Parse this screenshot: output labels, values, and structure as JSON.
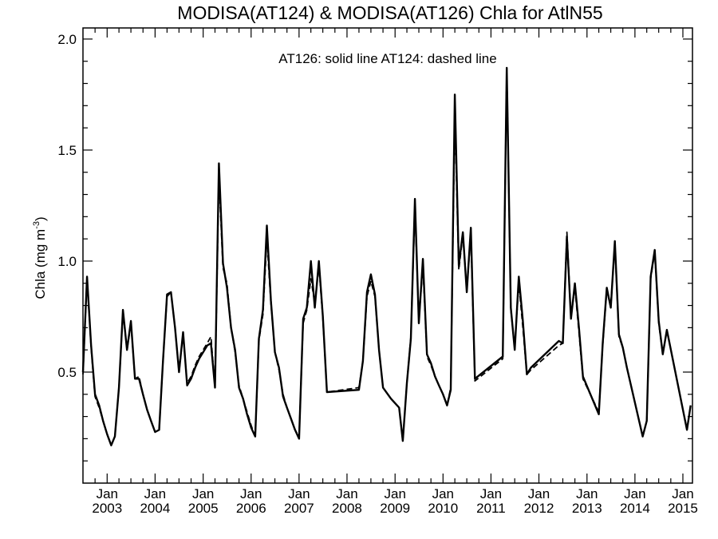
{
  "chart_data": {
    "type": "line",
    "title": "MODISA(AT124) & MODISA(AT126)  Chla for AtlN55",
    "annotation": "AT126: solid line   AT124: dashed line",
    "ylabel_main": "Chla (mg m",
    "ylabel_exp": "-3",
    "ylabel_close": ")",
    "xlabel": "",
    "xlim": [
      "2002-07-01",
      "2015-03-15"
    ],
    "ylim": [
      0.0,
      2.05
    ],
    "y_ticks": [
      {
        "value": 0.5,
        "label": "0.5"
      },
      {
        "value": 1.0,
        "label": "1.0"
      },
      {
        "value": 1.5,
        "label": "1.5"
      },
      {
        "value": 2.0,
        "label": "2.0"
      }
    ],
    "x_ticks": [
      {
        "date": "2003-01-01",
        "month": "Jan",
        "year": "2003"
      },
      {
        "date": "2004-01-01",
        "month": "Jan",
        "year": "2004"
      },
      {
        "date": "2005-01-01",
        "month": "Jan",
        "year": "2005"
      },
      {
        "date": "2006-01-01",
        "month": "Jan",
        "year": "2006"
      },
      {
        "date": "2007-01-01",
        "month": "Jan",
        "year": "2007"
      },
      {
        "date": "2008-01-01",
        "month": "Jan",
        "year": "2008"
      },
      {
        "date": "2009-01-01",
        "month": "Jan",
        "year": "2009"
      },
      {
        "date": "2010-01-01",
        "month": "Jan",
        "year": "2010"
      },
      {
        "date": "2011-01-01",
        "month": "Jan",
        "year": "2011"
      },
      {
        "date": "2012-01-01",
        "month": "Jan",
        "year": "2012"
      },
      {
        "date": "2013-01-01",
        "month": "Jan",
        "year": "2013"
      },
      {
        "date": "2014-01-01",
        "month": "Jan",
        "year": "2014"
      },
      {
        "date": "2015-01-01",
        "month": "Jan",
        "year": "2015"
      }
    ],
    "series": [
      {
        "style": "solid",
        "points": [
          [
            "2002-07-01",
            0.5
          ],
          [
            "2002-08-01",
            0.93
          ],
          [
            "2002-09-01",
            0.62
          ],
          [
            "2002-10-01",
            0.4
          ],
          [
            "2002-11-01",
            0.35
          ],
          [
            "2002-12-01",
            0.28
          ],
          [
            "2003-01-01",
            0.22
          ],
          [
            "2003-02-01",
            0.17
          ],
          [
            "2003-03-01",
            0.21
          ],
          [
            "2003-04-01",
            0.43
          ],
          [
            "2003-05-01",
            0.78
          ],
          [
            "2003-06-01",
            0.6
          ],
          [
            "2003-07-01",
            0.73
          ],
          [
            "2003-08-01",
            0.47
          ],
          [
            "2003-09-01",
            0.47
          ],
          [
            "2003-10-01",
            0.4
          ],
          [
            "2003-11-01",
            0.33
          ],
          [
            "2003-12-01",
            0.28
          ],
          [
            "2004-01-01",
            0.23
          ],
          [
            "2004-02-01",
            0.24
          ],
          [
            "2004-03-01",
            0.55
          ],
          [
            "2004-04-01",
            0.85
          ],
          [
            "2004-05-01",
            0.86
          ],
          [
            "2004-06-01",
            0.7
          ],
          [
            "2004-07-01",
            0.5
          ],
          [
            "2004-08-01",
            0.68
          ],
          [
            "2004-09-01",
            0.44
          ],
          [
            "2004-10-01",
            0.47
          ],
          [
            "2004-11-01",
            0.52
          ],
          [
            "2004-12-01",
            0.56
          ],
          [
            "2005-01-01",
            0.59
          ],
          [
            "2005-02-01",
            0.62
          ],
          [
            "2005-03-01",
            0.63
          ],
          [
            "2005-04-01",
            0.43
          ],
          [
            "2005-05-01",
            1.44
          ],
          [
            "2005-06-01",
            0.99
          ],
          [
            "2005-07-01",
            0.88
          ],
          [
            "2005-08-01",
            0.7
          ],
          [
            "2005-09-01",
            0.6
          ],
          [
            "2005-10-01",
            0.43
          ],
          [
            "2005-11-01",
            0.38
          ],
          [
            "2005-12-01",
            0.31
          ],
          [
            "2006-01-01",
            0.25
          ],
          [
            "2006-02-01",
            0.21
          ],
          [
            "2006-03-01",
            0.65
          ],
          [
            "2006-04-01",
            0.78
          ],
          [
            "2006-05-01",
            1.16
          ],
          [
            "2006-06-01",
            0.82
          ],
          [
            "2006-07-01",
            0.59
          ],
          [
            "2006-08-01",
            0.52
          ],
          [
            "2006-09-01",
            0.39
          ],
          [
            "2006-10-01",
            0.34
          ],
          [
            "2006-11-01",
            0.29
          ],
          [
            "2006-12-01",
            0.24
          ],
          [
            "2007-01-01",
            0.2
          ],
          [
            "2007-02-01",
            0.74
          ],
          [
            "2007-03-01",
            0.79
          ],
          [
            "2007-04-01",
            1.0
          ],
          [
            "2007-05-01",
            0.79
          ],
          [
            "2007-06-01",
            1.0
          ],
          [
            "2007-07-01",
            0.75
          ],
          [
            "2007-08-01",
            0.41
          ],
          [
            "2008-04-01",
            0.42
          ],
          [
            "2008-05-01",
            0.55
          ],
          [
            "2008-06-01",
            0.86
          ],
          [
            "2008-07-01",
            0.94
          ],
          [
            "2008-08-01",
            0.85
          ],
          [
            "2008-09-01",
            0.6
          ],
          [
            "2008-10-01",
            0.43
          ],
          [
            "2008-12-01",
            0.38
          ],
          [
            "2009-02-01",
            0.34
          ],
          [
            "2009-03-01",
            0.19
          ],
          [
            "2009-04-01",
            0.45
          ],
          [
            "2009-05-01",
            0.65
          ],
          [
            "2009-06-01",
            1.28
          ],
          [
            "2009-07-01",
            0.72
          ],
          [
            "2009-08-01",
            1.01
          ],
          [
            "2009-09-01",
            0.58
          ],
          [
            "2009-10-01",
            0.54
          ],
          [
            "2009-11-01",
            0.48
          ],
          [
            "2009-12-01",
            0.44
          ],
          [
            "2010-01-01",
            0.4
          ],
          [
            "2010-02-01",
            0.35
          ],
          [
            "2010-03-01",
            0.42
          ],
          [
            "2010-04-01",
            1.75
          ],
          [
            "2010-05-01",
            0.98
          ],
          [
            "2010-06-01",
            1.13
          ],
          [
            "2010-07-01",
            0.86
          ],
          [
            "2010-08-01",
            1.15
          ],
          [
            "2010-09-01",
            0.47
          ],
          [
            "2011-04-01",
            0.57
          ],
          [
            "2011-05-01",
            1.87
          ],
          [
            "2011-06-01",
            0.79
          ],
          [
            "2011-07-01",
            0.6
          ],
          [
            "2011-08-01",
            0.93
          ],
          [
            "2011-09-01",
            0.73
          ],
          [
            "2011-10-01",
            0.49
          ],
          [
            "2011-11-01",
            0.52
          ],
          [
            "2012-06-01",
            0.64
          ],
          [
            "2012-07-01",
            0.63
          ],
          [
            "2012-08-01",
            1.11
          ],
          [
            "2012-09-01",
            0.74
          ],
          [
            "2012-10-01",
            0.9
          ],
          [
            "2012-11-01",
            0.7
          ],
          [
            "2012-12-01",
            0.48
          ],
          [
            "2013-04-01",
            0.31
          ],
          [
            "2013-05-01",
            0.63
          ],
          [
            "2013-06-01",
            0.88
          ],
          [
            "2013-07-01",
            0.79
          ],
          [
            "2013-08-01",
            1.09
          ],
          [
            "2013-09-01",
            0.67
          ],
          [
            "2013-10-01",
            0.61
          ],
          [
            "2013-11-01",
            0.52
          ],
          [
            "2014-03-01",
            0.21
          ],
          [
            "2014-04-01",
            0.28
          ],
          [
            "2014-05-01",
            0.93
          ],
          [
            "2014-06-01",
            1.05
          ],
          [
            "2014-07-01",
            0.73
          ],
          [
            "2014-08-01",
            0.58
          ],
          [
            "2014-09-01",
            0.69
          ],
          [
            "2015-02-01",
            0.24
          ],
          [
            "2015-03-01",
            0.35
          ]
        ]
      },
      {
        "style": "dashed",
        "points": [
          [
            "2002-07-01",
            0.49
          ],
          [
            "2002-08-01",
            0.92
          ],
          [
            "2002-09-01",
            0.61
          ],
          [
            "2002-10-01",
            0.39
          ],
          [
            "2002-11-01",
            0.34
          ],
          [
            "2002-12-01",
            0.28
          ],
          [
            "2003-01-01",
            0.22
          ],
          [
            "2003-02-01",
            0.17
          ],
          [
            "2003-03-01",
            0.21
          ],
          [
            "2003-04-01",
            0.43
          ],
          [
            "2003-05-01",
            0.77
          ],
          [
            "2003-06-01",
            0.6
          ],
          [
            "2003-07-01",
            0.72
          ],
          [
            "2003-08-01",
            0.47
          ],
          [
            "2003-09-01",
            0.48
          ],
          [
            "2003-10-01",
            0.4
          ],
          [
            "2003-11-01",
            0.33
          ],
          [
            "2003-12-01",
            0.28
          ],
          [
            "2004-01-01",
            0.23
          ],
          [
            "2004-02-01",
            0.24
          ],
          [
            "2004-03-01",
            0.55
          ],
          [
            "2004-04-01",
            0.84
          ],
          [
            "2004-05-01",
            0.86
          ],
          [
            "2004-06-01",
            0.7
          ],
          [
            "2004-07-01",
            0.5
          ],
          [
            "2004-08-01",
            0.67
          ],
          [
            "2004-09-01",
            0.45
          ],
          [
            "2004-10-01",
            0.48
          ],
          [
            "2004-11-01",
            0.53
          ],
          [
            "2004-12-01",
            0.57
          ],
          [
            "2005-01-01",
            0.6
          ],
          [
            "2005-02-01",
            0.63
          ],
          [
            "2005-03-01",
            0.66
          ],
          [
            "2005-04-01",
            0.43
          ],
          [
            "2005-05-01",
            1.38
          ],
          [
            "2005-06-01",
            0.97
          ],
          [
            "2005-07-01",
            0.9
          ],
          [
            "2005-08-01",
            0.7
          ],
          [
            "2005-09-01",
            0.59
          ],
          [
            "2005-10-01",
            0.44
          ],
          [
            "2005-11-01",
            0.38
          ],
          [
            "2005-12-01",
            0.32
          ],
          [
            "2006-01-01",
            0.26
          ],
          [
            "2006-02-01",
            0.21
          ],
          [
            "2006-03-01",
            0.64
          ],
          [
            "2006-04-01",
            0.76
          ],
          [
            "2006-05-01",
            1.1
          ],
          [
            "2006-06-01",
            0.81
          ],
          [
            "2006-07-01",
            0.59
          ],
          [
            "2006-08-01",
            0.51
          ],
          [
            "2006-09-01",
            0.4
          ],
          [
            "2006-10-01",
            0.34
          ],
          [
            "2006-11-01",
            0.29
          ],
          [
            "2006-12-01",
            0.24
          ],
          [
            "2007-01-01",
            0.21
          ],
          [
            "2007-02-01",
            0.72
          ],
          [
            "2007-03-01",
            0.78
          ],
          [
            "2007-04-01",
            0.92
          ],
          [
            "2007-05-01",
            0.81
          ],
          [
            "2007-06-01",
            0.98
          ],
          [
            "2007-07-01",
            0.74
          ],
          [
            "2007-08-01",
            0.41
          ],
          [
            "2008-04-01",
            0.43
          ],
          [
            "2008-05-01",
            0.55
          ],
          [
            "2008-06-01",
            0.84
          ],
          [
            "2008-07-01",
            0.91
          ],
          [
            "2008-08-01",
            0.84
          ],
          [
            "2008-09-01",
            0.6
          ],
          [
            "2008-10-01",
            0.43
          ],
          [
            "2008-12-01",
            0.38
          ],
          [
            "2009-02-01",
            0.34
          ],
          [
            "2009-03-01",
            0.19
          ],
          [
            "2009-04-01",
            0.45
          ],
          [
            "2009-05-01",
            0.66
          ],
          [
            "2009-06-01",
            1.24
          ],
          [
            "2009-07-01",
            0.73
          ],
          [
            "2009-08-01",
            0.98
          ],
          [
            "2009-09-01",
            0.57
          ],
          [
            "2009-10-01",
            0.53
          ],
          [
            "2009-11-01",
            0.48
          ],
          [
            "2009-12-01",
            0.44
          ],
          [
            "2010-01-01",
            0.4
          ],
          [
            "2010-02-01",
            0.35
          ],
          [
            "2010-03-01",
            0.43
          ],
          [
            "2010-04-01",
            1.66
          ],
          [
            "2010-05-01",
            0.96
          ],
          [
            "2010-06-01",
            1.12
          ],
          [
            "2010-07-01",
            0.87
          ],
          [
            "2010-08-01",
            1.12
          ],
          [
            "2010-09-01",
            0.46
          ],
          [
            "2011-04-01",
            0.56
          ],
          [
            "2011-05-01",
            1.87
          ],
          [
            "2011-06-01",
            0.78
          ],
          [
            "2011-07-01",
            0.61
          ],
          [
            "2011-08-01",
            0.9
          ],
          [
            "2011-09-01",
            0.7
          ],
          [
            "2011-10-01",
            0.49
          ],
          [
            "2011-11-01",
            0.51
          ],
          [
            "2012-06-01",
            0.62
          ],
          [
            "2012-07-01",
            0.63
          ],
          [
            "2012-08-01",
            1.13
          ],
          [
            "2012-09-01",
            0.75
          ],
          [
            "2012-10-01",
            0.88
          ],
          [
            "2012-11-01",
            0.68
          ],
          [
            "2012-12-01",
            0.47
          ],
          [
            "2013-04-01",
            0.32
          ],
          [
            "2013-05-01",
            0.62
          ],
          [
            "2013-06-01",
            0.87
          ],
          [
            "2013-07-01",
            0.79
          ],
          [
            "2013-08-01",
            1.08
          ],
          [
            "2013-09-01",
            0.66
          ],
          [
            "2013-10-01",
            0.61
          ],
          [
            "2013-11-01",
            0.52
          ],
          [
            "2014-03-01",
            0.21
          ],
          [
            "2014-04-01",
            0.28
          ],
          [
            "2014-05-01",
            0.92
          ],
          [
            "2014-06-01",
            1.04
          ],
          [
            "2014-07-01",
            0.72
          ],
          [
            "2014-08-01",
            0.58
          ],
          [
            "2014-09-01",
            0.69
          ],
          [
            "2015-02-01",
            0.24
          ],
          [
            "2015-03-01",
            0.35
          ]
        ]
      }
    ]
  }
}
